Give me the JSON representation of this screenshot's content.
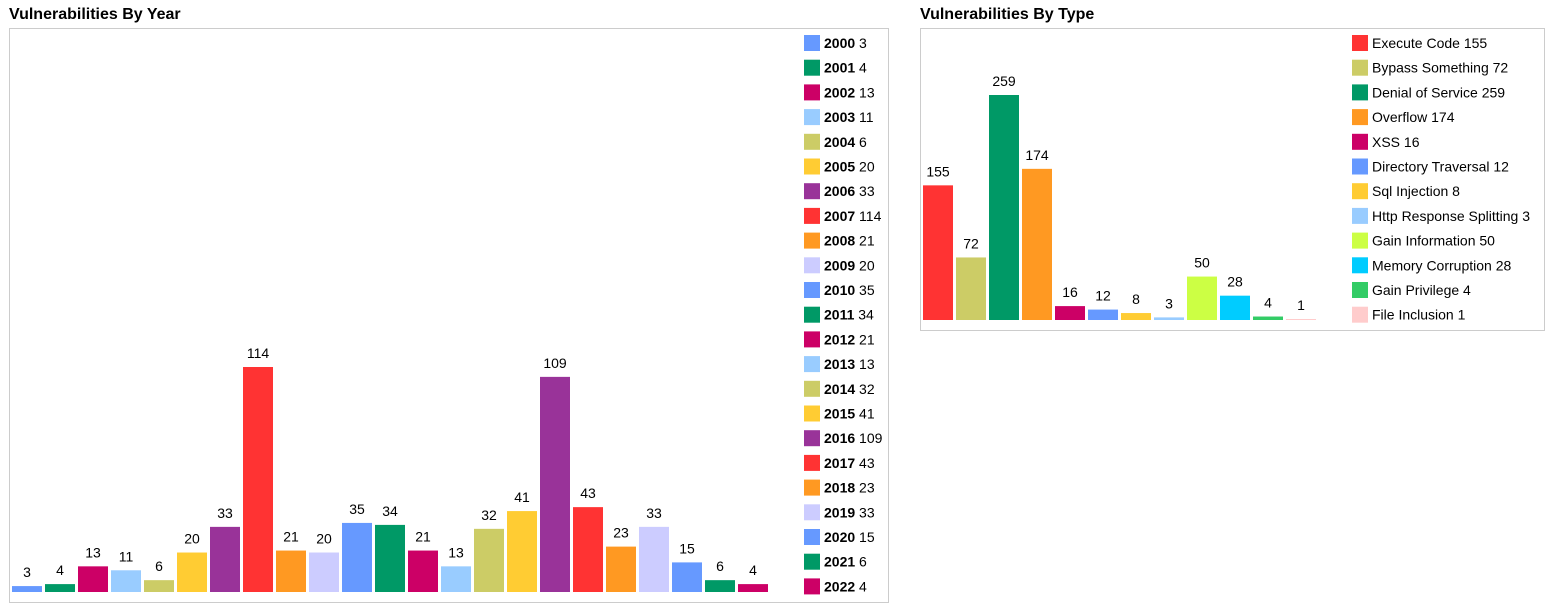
{
  "chart_data": [
    {
      "type": "bar",
      "title": "Vulnerabilities By Year",
      "categories": [
        "2000",
        "2001",
        "2002",
        "2003",
        "2004",
        "2005",
        "2006",
        "2007",
        "2008",
        "2009",
        "2010",
        "2011",
        "2012",
        "2013",
        "2014",
        "2015",
        "2016",
        "2017",
        "2018",
        "2019",
        "2020",
        "2021",
        "2022"
      ],
      "values": [
        3,
        4,
        13,
        11,
        6,
        20,
        33,
        114,
        21,
        20,
        35,
        34,
        21,
        13,
        32,
        41,
        109,
        43,
        23,
        33,
        15,
        6,
        4
      ],
      "colors": [
        "#6699ff",
        "#009966",
        "#cc0066",
        "#99ccff",
        "#cccc66",
        "#ffcc33",
        "#993399",
        "#ff3333",
        "#ff9922",
        "#ccccff",
        "#6699ff",
        "#009966",
        "#cc0066",
        "#99ccff",
        "#cccc66",
        "#ffcc33",
        "#993399",
        "#ff3333",
        "#ff9922",
        "#ccccff",
        "#6699ff",
        "#009966",
        "#cc0066"
      ],
      "legend": "right",
      "grid": false,
      "ylim": [
        0,
        114
      ]
    },
    {
      "type": "bar",
      "title": "Vulnerabilities By Type",
      "categories": [
        "Execute Code",
        "Bypass Something",
        "Denial of Service",
        "Overflow",
        "XSS",
        "Directory Traversal",
        "Sql Injection",
        "Http Response Splitting",
        "Gain Information",
        "Memory Corruption",
        "Gain Privilege",
        "File Inclusion"
      ],
      "values": [
        155,
        72,
        259,
        174,
        16,
        12,
        8,
        3,
        50,
        28,
        4,
        1
      ],
      "colors": [
        "#ff3333",
        "#cccc66",
        "#009966",
        "#ff9922",
        "#cc0066",
        "#6699ff",
        "#ffcc33",
        "#99ccff",
        "#ccff44",
        "#00ccff",
        "#33cc66",
        "#ffcccc"
      ],
      "legend": "right",
      "grid": false,
      "ylim": [
        0,
        259
      ]
    }
  ]
}
